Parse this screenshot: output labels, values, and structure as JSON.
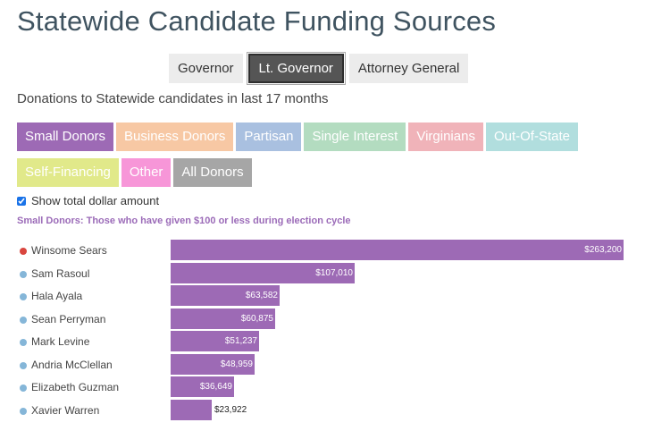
{
  "page": {
    "title": "Statewide Candidate Funding Sources",
    "subtitle": "Donations to Statewide candidates in last 17 months"
  },
  "office_tabs": [
    {
      "label": "Governor",
      "active": false
    },
    {
      "label": "Lt. Governor",
      "active": true
    },
    {
      "label": "Attorney General",
      "active": false
    }
  ],
  "categories_row1": [
    {
      "label": "Small Donors",
      "color": "#9d6ab5",
      "active": true
    },
    {
      "label": "Business Donors",
      "color": "#f7c8a4",
      "active": false
    },
    {
      "label": "Partisan",
      "color": "#a9c0e0",
      "active": false
    },
    {
      "label": "Single Interest",
      "color": "#b3dcc0",
      "active": false
    },
    {
      "label": "Virginians",
      "color": "#f0b3b9",
      "active": false
    },
    {
      "label": "Out-Of-State",
      "color": "#b1dede",
      "active": false
    }
  ],
  "categories_row2": [
    {
      "label": "Self-Financing",
      "color": "#e1e98a",
      "active": false
    },
    {
      "label": "Other",
      "color": "#f796d8",
      "active": false
    },
    {
      "label": "All Donors",
      "color": "#a6a6a6",
      "active": false
    }
  ],
  "checkbox": {
    "label": "Show total dollar amount",
    "checked": true
  },
  "category_description": "Small Donors: Those who have given $100 or less during election cycle",
  "chart_data": {
    "type": "bar",
    "orientation": "horizontal",
    "bar_color": "#9d6ab5",
    "xlim": [
      0,
      263200
    ],
    "candidates": [
      {
        "name": "Winsome Sears",
        "value": 263200,
        "label": "$263,200",
        "party_color": "#d9463f"
      },
      {
        "name": "Sam Rasoul",
        "value": 107010,
        "label": "$107,010",
        "party_color": "#85b6d8"
      },
      {
        "name": "Hala Ayala",
        "value": 63582,
        "label": "$63,582",
        "party_color": "#85b6d8"
      },
      {
        "name": "Sean Perryman",
        "value": 60875,
        "label": "$60,875",
        "party_color": "#85b6d8"
      },
      {
        "name": "Mark Levine",
        "value": 51237,
        "label": "$51,237",
        "party_color": "#85b6d8"
      },
      {
        "name": "Andria McClellan",
        "value": 48959,
        "label": "$48,959",
        "party_color": "#85b6d8"
      },
      {
        "name": "Elizabeth Guzman",
        "value": 36649,
        "label": "$36,649",
        "party_color": "#85b6d8"
      },
      {
        "name": "Xavier Warren",
        "value": 23922,
        "label": "$23,922",
        "party_color": "#85b6d8"
      }
    ]
  }
}
